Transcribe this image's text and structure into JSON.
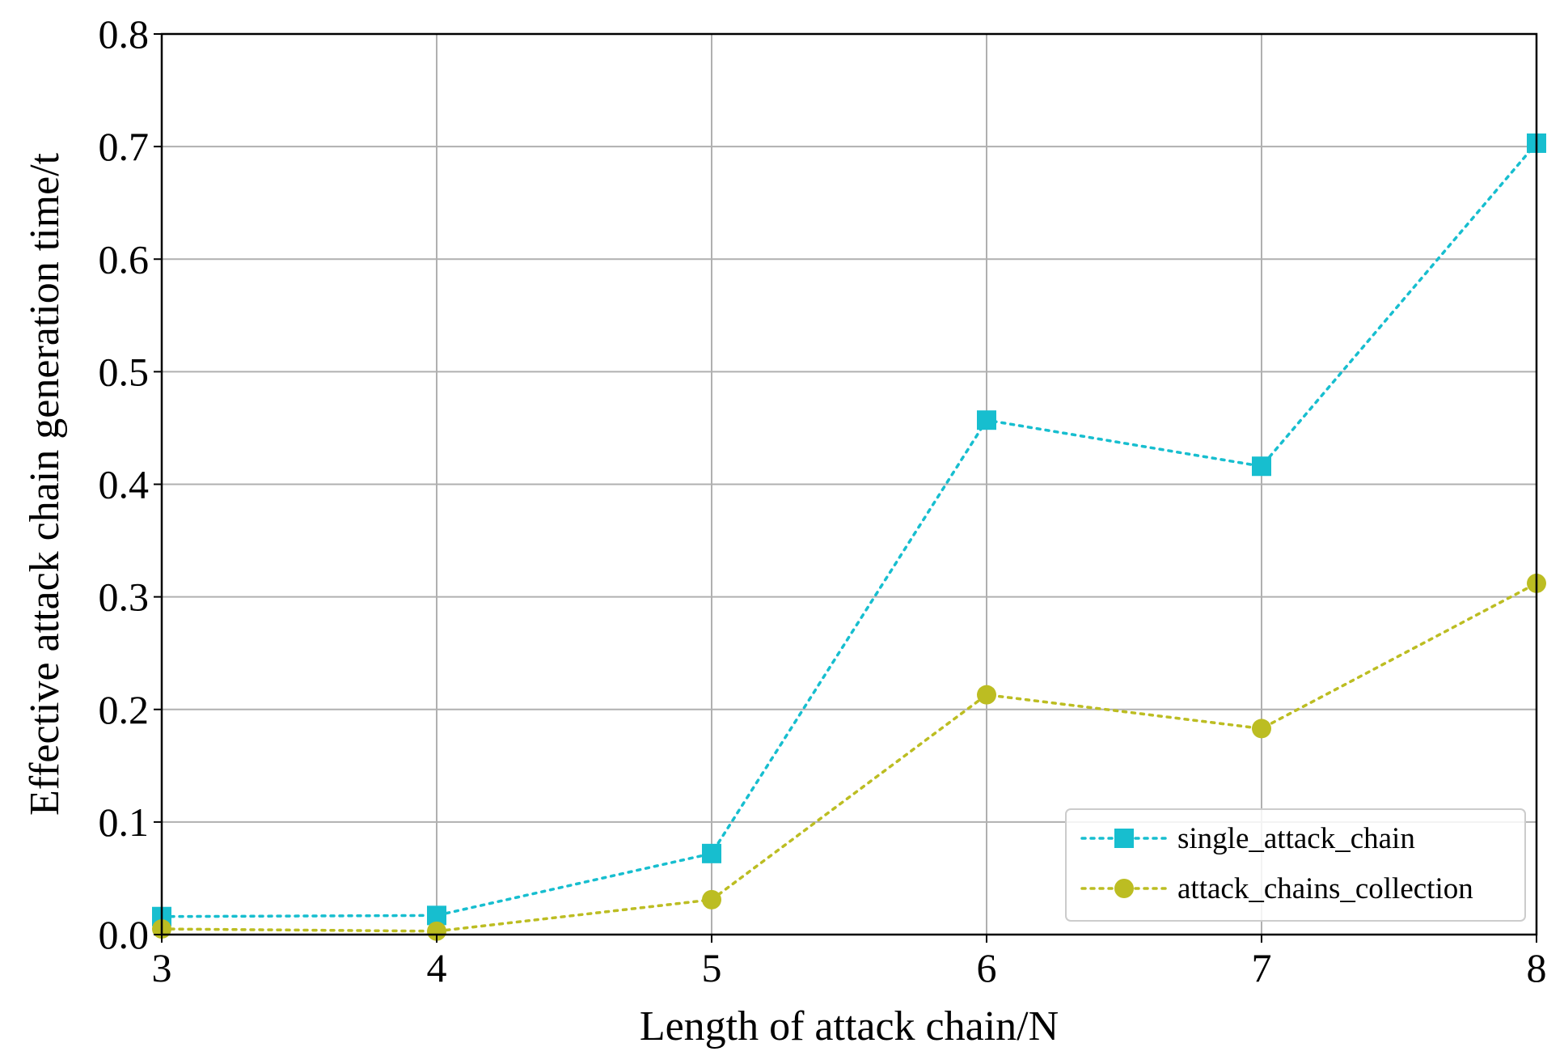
{
  "chart_data": {
    "type": "line",
    "xlabel": "Length of attack chain/N",
    "ylabel": "Effective attack chain generation time/t",
    "x": [
      3,
      4,
      5,
      6,
      7,
      8
    ],
    "xlim": [
      3,
      8
    ],
    "ylim": [
      0.0,
      0.8
    ],
    "xticks": [
      "3",
      "4",
      "5",
      "6",
      "7",
      "8"
    ],
    "yticks": [
      "0.0",
      "0.1",
      "0.2",
      "0.3",
      "0.4",
      "0.5",
      "0.6",
      "0.7",
      "0.8"
    ],
    "grid": true,
    "legend_position": "lower-right",
    "series": [
      {
        "name": "single_attack_chain",
        "values": [
          0.016,
          0.017,
          0.072,
          0.457,
          0.416,
          0.703
        ],
        "color": "#17becf",
        "marker": "square",
        "linestyle": "dotted"
      },
      {
        "name": "attack_chains_collection",
        "values": [
          0.005,
          0.003,
          0.031,
          0.213,
          0.183,
          0.312
        ],
        "color": "#bcbd22",
        "marker": "circle",
        "linestyle": "dotted"
      }
    ]
  }
}
